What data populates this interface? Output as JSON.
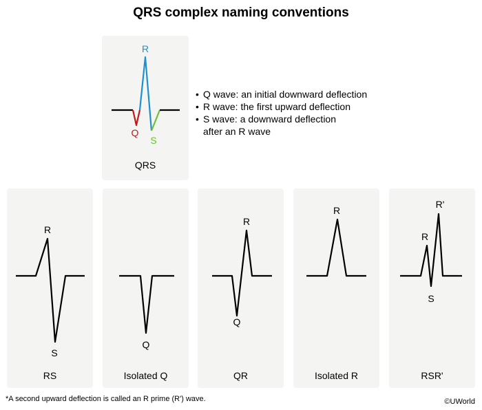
{
  "title": "QRS complex naming conventions",
  "main": {
    "card_label": "QRS",
    "wave_labels": {
      "r": "R",
      "q": "Q",
      "s": "S"
    },
    "colors": {
      "q": "#c0181f",
      "r": "#1f8fd0",
      "s": "#6cc232",
      "line": "#000000"
    }
  },
  "definitions": [
    {
      "text": "Q wave: an initial downward deflection"
    },
    {
      "text": "R wave: the first upward deflection"
    },
    {
      "text": "S wave: a downward deflection",
      "continuation": "after an R wave"
    }
  ],
  "examples": [
    {
      "label": "RS",
      "waves": [
        "R",
        "S"
      ]
    },
    {
      "label": "Isolated Q",
      "waves": [
        "Q"
      ]
    },
    {
      "label": "QR",
      "waves": [
        "R",
        "Q"
      ]
    },
    {
      "label": "Isolated R",
      "waves": [
        "R"
      ]
    },
    {
      "label": "RSR'",
      "waves": [
        "R'",
        "R",
        "S"
      ]
    }
  ],
  "footnote": "*A second upward deflection is called an R prime (R') wave.",
  "copyright": "©UWorld"
}
